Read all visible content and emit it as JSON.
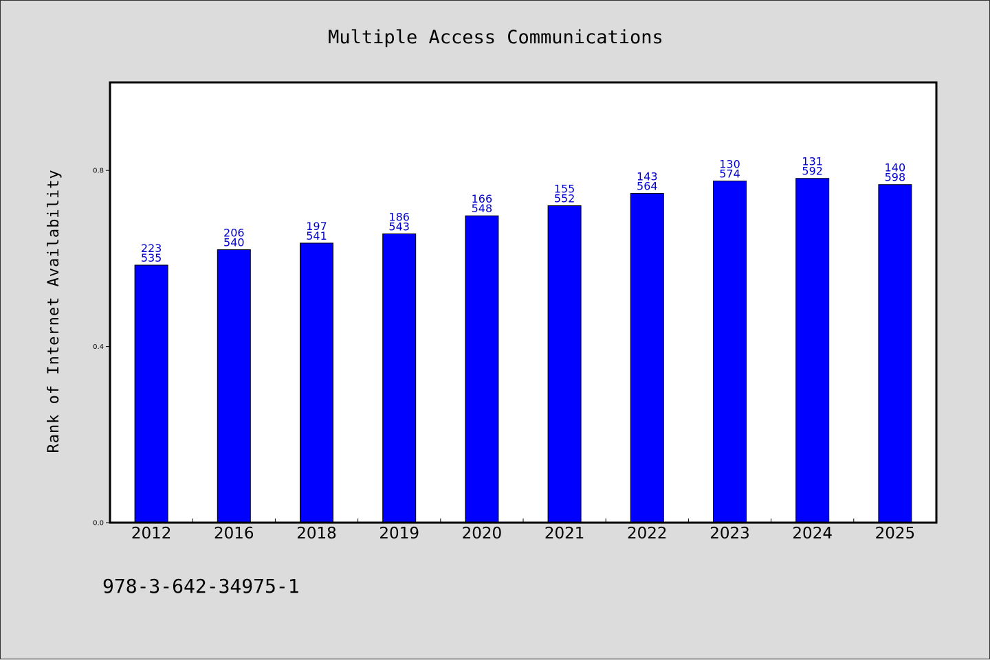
{
  "chart_data": {
    "type": "bar",
    "title": "Multiple Access Communications",
    "xlabel": "",
    "ylabel": "Rank of Internet Availability",
    "categories": [
      "2012",
      "2016",
      "2018",
      "2019",
      "2020",
      "2021",
      "2022",
      "2023",
      "2024",
      "2025"
    ],
    "values": [
      0.585,
      0.62,
      0.635,
      0.656,
      0.697,
      0.72,
      0.748,
      0.776,
      0.782,
      0.768
    ],
    "labels_top": [
      "223",
      "206",
      "197",
      "186",
      "166",
      "155",
      "143",
      "130",
      "131",
      "140"
    ],
    "labels_bottom": [
      "535",
      "540",
      "541",
      "543",
      "548",
      "552",
      "564",
      "574",
      "592",
      "598"
    ],
    "yticks": [
      "0.0",
      "0.4",
      "0.8"
    ],
    "ylim": [
      0,
      1.0
    ],
    "grid": false,
    "legend": "none",
    "bar_color": "#0000ff",
    "label_color": "#0000cc"
  },
  "footer_text": "978-3-642-34975-1"
}
